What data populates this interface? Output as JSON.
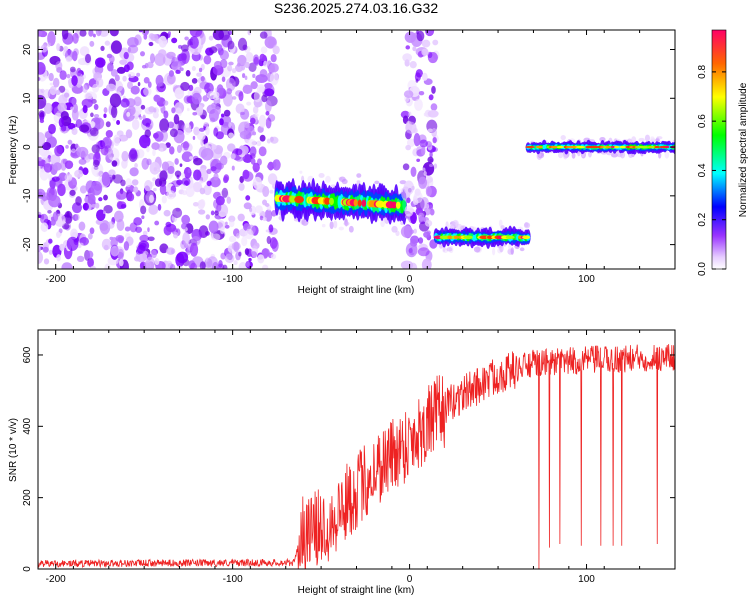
{
  "title": "S236.2025.274.03.16.G32",
  "chart_data": [
    {
      "type": "heatmap",
      "xlabel": "Height of straight line (km)",
      "ylabel": "Frequency (Hz)",
      "xlim": [
        -210,
        150
      ],
      "ylim": [
        -25,
        24
      ],
      "xticks": [
        -200,
        -100,
        0,
        100
      ],
      "yticks": [
        -20,
        -10,
        0,
        10,
        20
      ],
      "xtick_labels": [
        "-200",
        "-100",
        "0",
        "100"
      ],
      "ytick_labels": [
        "-20",
        "-10",
        "0",
        "10",
        "20"
      ],
      "colorbar": {
        "label": "Normalized spectral amplitude",
        "ticks": [
          0.0,
          0.2,
          0.4,
          0.6,
          0.8
        ],
        "tick_labels": [
          "0.0",
          "0.2",
          "0.4",
          "0.6",
          "0.8"
        ],
        "range": [
          0,
          0.97
        ]
      },
      "regions": [
        {
          "x": [
            -210,
            -75
          ],
          "kind": "noise"
        },
        {
          "x": [
            -75,
            -3
          ],
          "kind": "signal",
          "freq_start": -10.5,
          "freq_end": -12,
          "width": 3
        },
        {
          "x": [
            -3,
            15
          ],
          "kind": "noise"
        },
        {
          "x": [
            15,
            67
          ],
          "kind": "signal",
          "freq_start": -18.5,
          "freq_end": -18.5,
          "width": 1.5
        },
        {
          "x": [
            67,
            150
          ],
          "kind": "signal",
          "freq_start": 0,
          "freq_end": 0,
          "width": 1
        }
      ]
    },
    {
      "type": "line",
      "xlabel": "Height of straight line (km)",
      "ylabel": "SNR (10 * v/v)",
      "xlim": [
        -210,
        150
      ],
      "ylim": [
        0,
        670
      ],
      "xticks": [
        -200,
        -100,
        0,
        100
      ],
      "yticks": [
        0,
        200,
        400,
        600
      ],
      "xtick_labels": [
        "-200",
        "-100",
        "0",
        "100"
      ],
      "ytick_labels": [
        "0",
        "200",
        "400",
        "600"
      ],
      "color": "#ee2222",
      "trend": [
        {
          "x": -210,
          "y": 15
        },
        {
          "x": -65,
          "y": 18
        },
        {
          "x": -62,
          "y": 90
        },
        {
          "x": -45,
          "y": 130
        },
        {
          "x": -30,
          "y": 220
        },
        {
          "x": -15,
          "y": 300
        },
        {
          "x": 0,
          "y": 360
        },
        {
          "x": 15,
          "y": 430
        },
        {
          "x": 30,
          "y": 490
        },
        {
          "x": 50,
          "y": 545
        },
        {
          "x": 70,
          "y": 575
        },
        {
          "x": 100,
          "y": 585
        },
        {
          "x": 150,
          "y": 595
        }
      ],
      "dips": [
        {
          "x": 73,
          "y": 0
        },
        {
          "x": 79,
          "y": 60
        },
        {
          "x": 85,
          "y": 70
        },
        {
          "x": 97,
          "y": 65
        },
        {
          "x": 108,
          "y": 65
        },
        {
          "x": 115,
          "y": 65
        },
        {
          "x": 120,
          "y": 65
        },
        {
          "x": 140,
          "y": 70
        }
      ]
    }
  ]
}
